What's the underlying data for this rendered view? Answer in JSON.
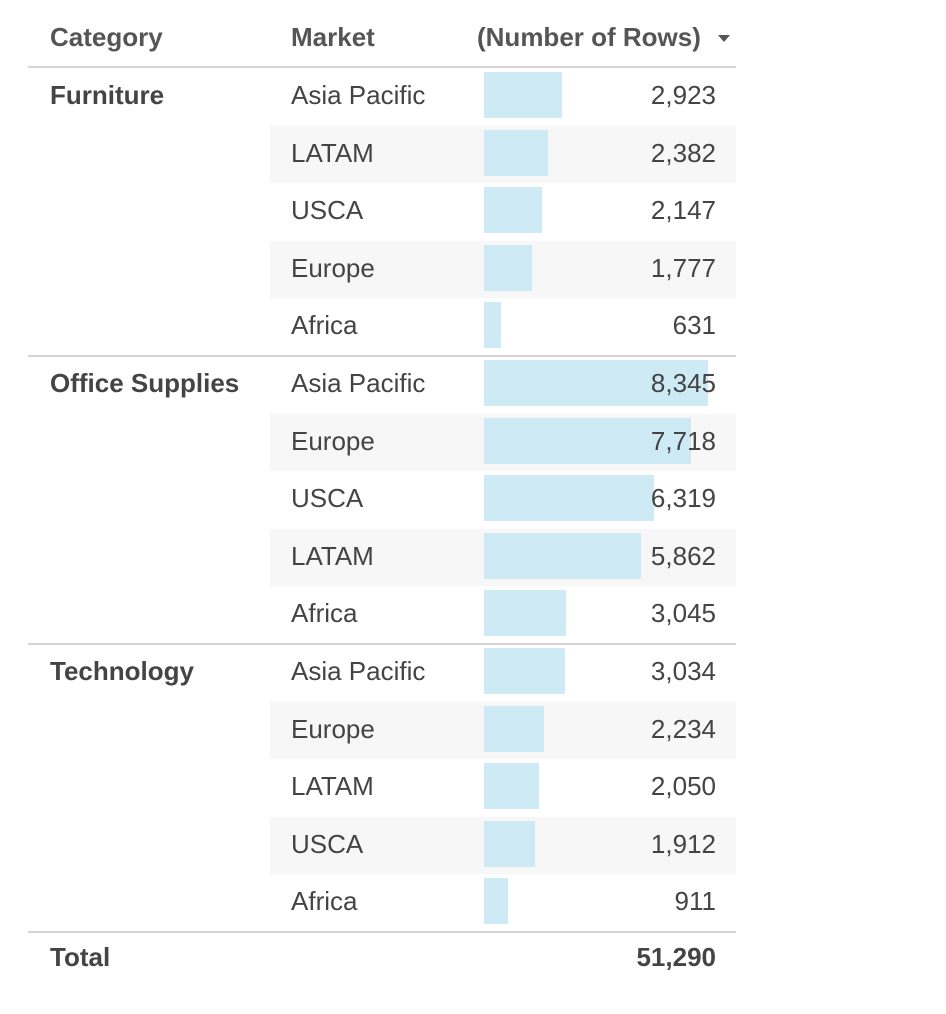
{
  "headers": {
    "category": "Category",
    "market": "Market",
    "measure": "(Number of Rows)"
  },
  "colors": {
    "bar": "#cdeaf5",
    "stripe": "#f7f7f7",
    "rule": "#d5d5d5",
    "text": "#444444"
  },
  "chart_data": {
    "type": "table",
    "columns": [
      "Category",
      "Market",
      "(Number of Rows)"
    ],
    "sort": "descending by (Number of Rows)",
    "bar_max": 8345,
    "groups": [
      {
        "category": "Furniture",
        "rows": [
          {
            "market": "Asia Pacific",
            "value": 2923,
            "label": "2,923"
          },
          {
            "market": "LATAM",
            "value": 2382,
            "label": "2,382"
          },
          {
            "market": "USCA",
            "value": 2147,
            "label": "2,147"
          },
          {
            "market": "Europe",
            "value": 1777,
            "label": "1,777"
          },
          {
            "market": "Africa",
            "value": 631,
            "label": "631"
          }
        ]
      },
      {
        "category": "Office Supplies",
        "rows": [
          {
            "market": "Asia Pacific",
            "value": 8345,
            "label": "8,345"
          },
          {
            "market": "Europe",
            "value": 7718,
            "label": "7,718"
          },
          {
            "market": "USCA",
            "value": 6319,
            "label": "6,319"
          },
          {
            "market": "LATAM",
            "value": 5862,
            "label": "5,862"
          },
          {
            "market": "Africa",
            "value": 3045,
            "label": "3,045"
          }
        ]
      },
      {
        "category": "Technology",
        "rows": [
          {
            "market": "Asia Pacific",
            "value": 3034,
            "label": "3,034"
          },
          {
            "market": "Europe",
            "value": 2234,
            "label": "2,234"
          },
          {
            "market": "LATAM",
            "value": 2050,
            "label": "2,050"
          },
          {
            "market": "USCA",
            "value": 1912,
            "label": "1,912"
          },
          {
            "market": "Africa",
            "value": 911,
            "label": "911"
          }
        ]
      }
    ],
    "total": {
      "label": "Total",
      "value": 51290,
      "display": "51,290"
    }
  }
}
